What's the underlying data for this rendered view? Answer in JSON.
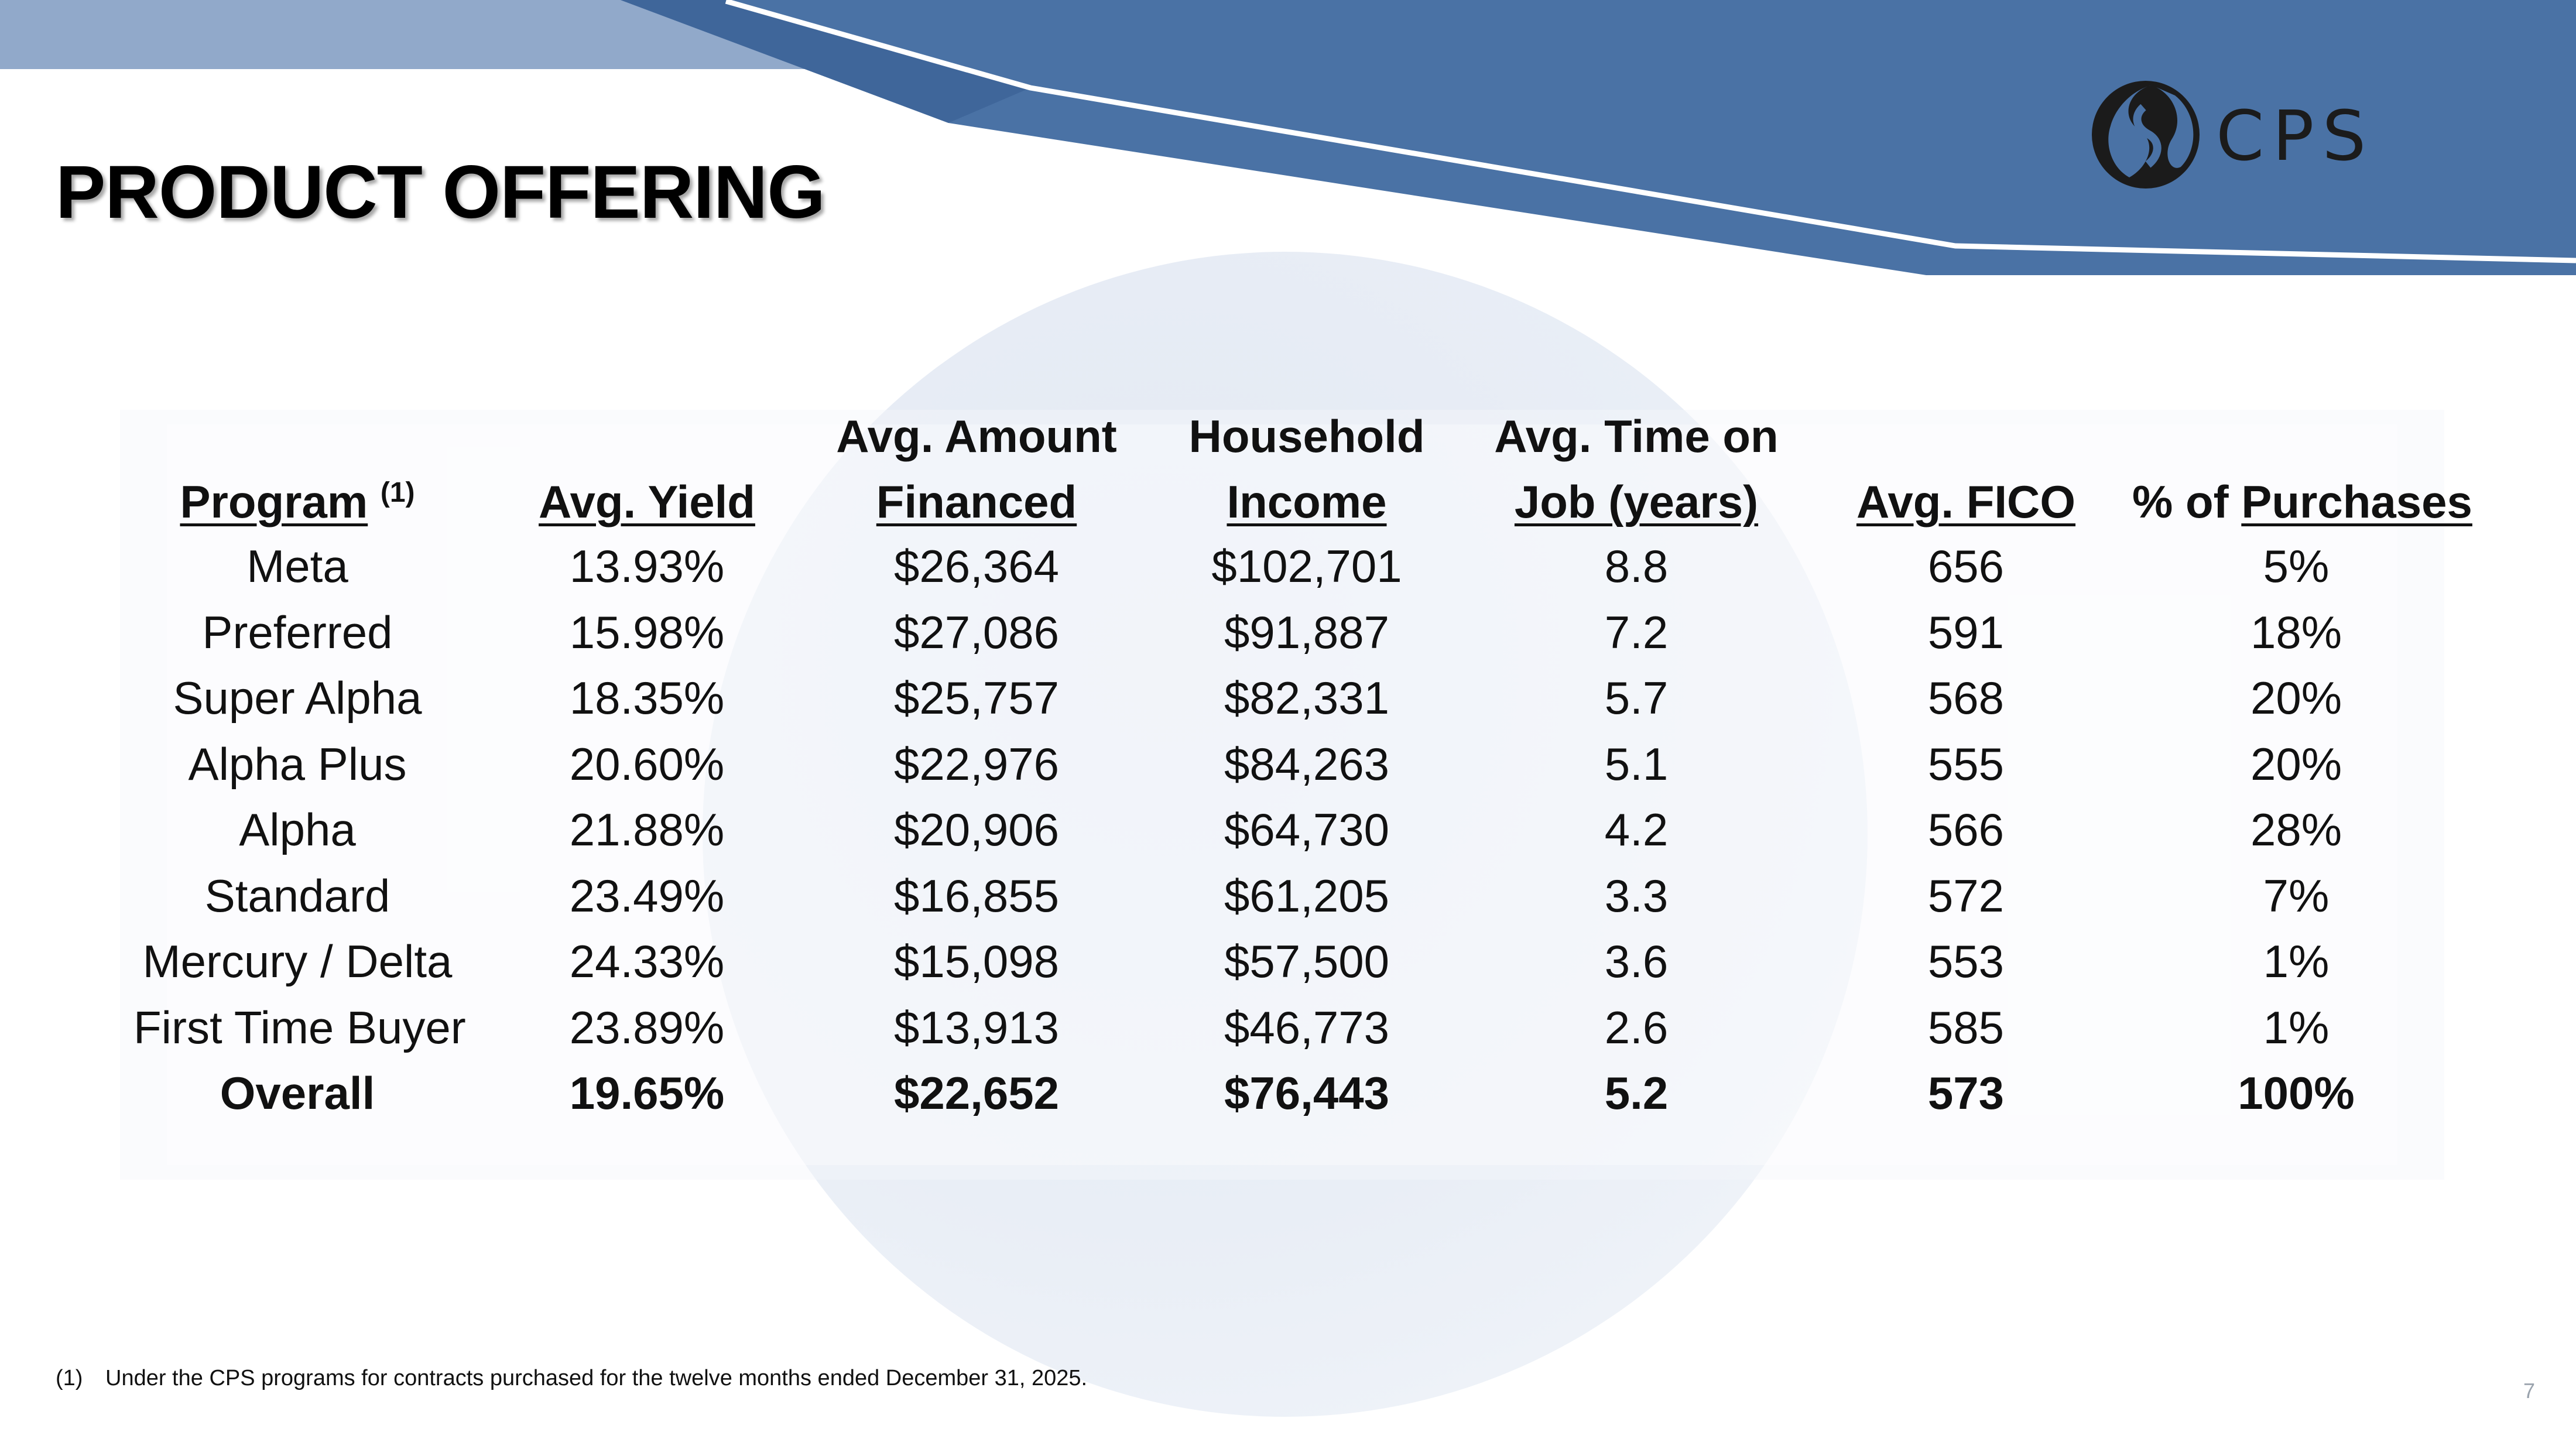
{
  "title": "PRODUCT OFFERING",
  "logo": {
    "text": "CPS",
    "mark_icon": "cps-logo-mark-icon"
  },
  "table": {
    "header_lines": [
      [
        "",
        "",
        "Avg. Amount",
        "Household",
        "Avg. Time on",
        "",
        ""
      ],
      [
        "Program",
        "Avg. Yield",
        "Financed",
        "Income",
        "Job (years)",
        "Avg. FICO",
        "Purchases"
      ]
    ],
    "program_footnote_ref": "(1)",
    "purchases_prefix": "% of ",
    "rows": [
      [
        "Meta",
        "13.93%",
        "$26,364",
        "$102,701",
        "8.8",
        "656",
        "5%"
      ],
      [
        "Preferred",
        "15.98%",
        "$27,086",
        "$91,887",
        "7.2",
        "591",
        "18%"
      ],
      [
        "Super Alpha",
        "18.35%",
        "$25,757",
        "$82,331",
        "5.7",
        "568",
        "20%"
      ],
      [
        "Alpha Plus",
        "20.60%",
        "$22,976",
        "$84,263",
        "5.1",
        "555",
        "20%"
      ],
      [
        "Alpha",
        "21.88%",
        "$20,906",
        "$64,730",
        "4.2",
        "566",
        "28%"
      ],
      [
        "Standard",
        "23.49%",
        "$16,855",
        "$61,205",
        "3.3",
        "572",
        "7%"
      ],
      [
        "Mercury / Delta",
        "24.33%",
        "$15,098",
        "$57,500",
        "3.6",
        "553",
        "1%"
      ],
      [
        "First Time Buyer",
        "23.89%",
        "$13,913",
        "$46,773",
        "2.6",
        "585",
        "1%"
      ]
    ],
    "total_row": [
      "Overall",
      "19.65%",
      "$22,652",
      "$76,443",
      "5.2",
      "573",
      "100%"
    ]
  },
  "footnote": {
    "marker": "(1)",
    "text": "Under the CPS programs for contracts purchased for the twelve months ended December 31, 2025."
  },
  "page_number": "7",
  "colors": {
    "banner_dark": "#4a72a5",
    "banner_light": "#8ea8c9",
    "circle": "#e6ecf5",
    "text": "#111111"
  }
}
